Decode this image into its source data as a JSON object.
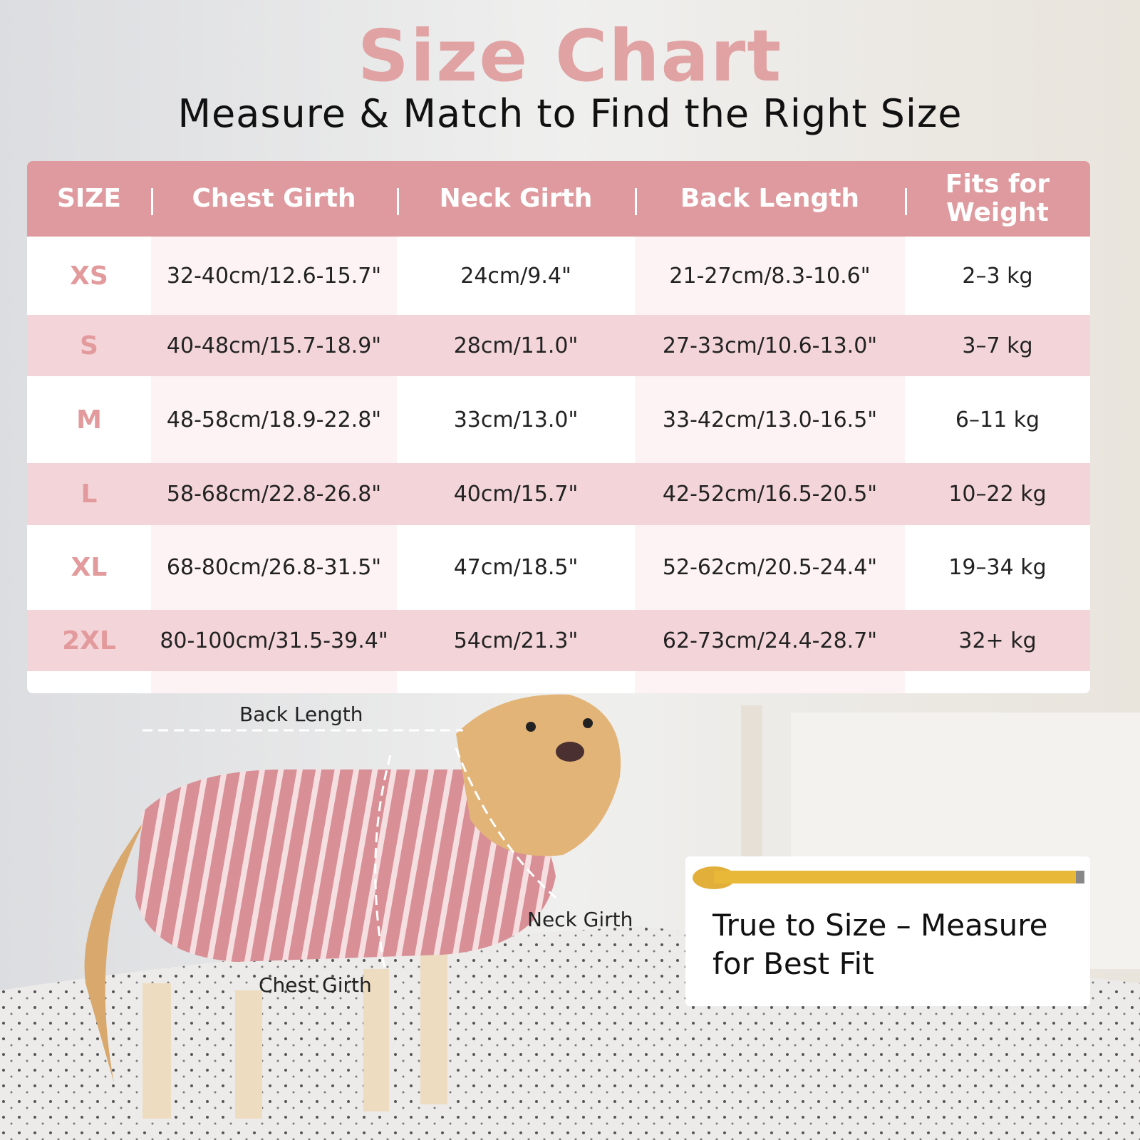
{
  "header": {
    "title": "Size Chart",
    "subtitle": "Measure & Match to Find the Right Size"
  },
  "table": {
    "columns": [
      "SIZE",
      "Chest Girth",
      "Neck Girth",
      "Back Length",
      "Fits for Weight"
    ],
    "rows": [
      [
        "XS",
        "32-40cm/12.6-15.7\"",
        "24cm/9.4\"",
        "21-27cm/8.3-10.6\"",
        "2–3 kg"
      ],
      [
        "S",
        "40-48cm/15.7-18.9\"",
        "28cm/11.0\"",
        "27-33cm/10.6-13.0\"",
        "3–7 kg"
      ],
      [
        "M",
        "48-58cm/18.9-22.8\"",
        "33cm/13.0\"",
        "33-42cm/13.0-16.5\"",
        "6–11 kg"
      ],
      [
        "L",
        "58-68cm/22.8-26.8\"",
        "40cm/15.7\"",
        "42-52cm/16.5-20.5\"",
        "10–22 kg"
      ],
      [
        "XL",
        "68-80cm/26.8-31.5\"",
        "47cm/18.5\"",
        "52-62cm/20.5-24.4\"",
        "19–34 kg"
      ],
      [
        "2XL",
        "80-100cm/31.5-39.4\"",
        "54cm/21.3\"",
        "62-73cm/24.4-28.7\"",
        "32+ kg"
      ]
    ]
  },
  "diagram": {
    "labels": [
      "Back Length",
      "Neck Girth",
      "Chest Girth"
    ]
  },
  "callout": {
    "text": "True to Size – Measure for Best Fit"
  }
}
